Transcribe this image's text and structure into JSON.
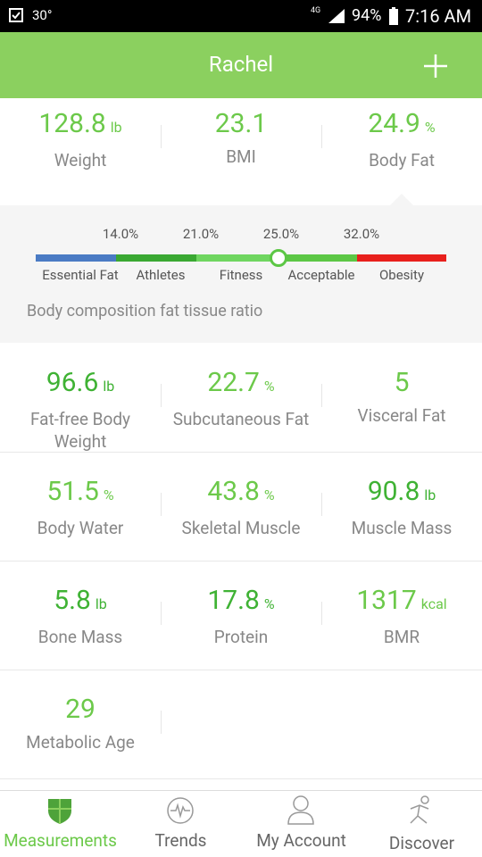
{
  "status_bar": {
    "temperature": "30°",
    "network": "4G",
    "battery": "94%",
    "time": "7:16 AM"
  },
  "header": {
    "title": "Rachel"
  },
  "summary": [
    {
      "value": 128.8,
      "unit": "lb",
      "label": "Weight"
    },
    {
      "value": 23.1,
      "label": "BMI"
    },
    {
      "value": 24.9,
      "unit": "%",
      "label": "Body Fat"
    }
  ],
  "body_fat_scale": {
    "thresholds": [
      "14.0%",
      "21.0%",
      "25.0%",
      "32.0%"
    ],
    "zones": [
      "Essential Fat",
      "Athletes",
      "Fitness",
      "Acceptable",
      "Obesity"
    ],
    "caption": "Body composition fat tissue ratio"
  },
  "metrics": [
    [
      {
        "value": 96.6,
        "unit": "lb",
        "label": "Fat-free Body Weight"
      },
      {
        "value": 22.7,
        "unit": "%",
        "label": "Subcutaneous Fat"
      },
      {
        "value": 5,
        "label": "Visceral Fat"
      }
    ],
    [
      {
        "value": 51.5,
        "unit": "%",
        "label": "Body Water"
      },
      {
        "value": 43.8,
        "unit": "%",
        "label": "Skeletal Muscle"
      },
      {
        "value": 90.8,
        "unit": "lb",
        "label": "Muscle Mass"
      }
    ],
    [
      {
        "value": 5.8,
        "unit": "lb",
        "label": "Bone Mass"
      },
      {
        "value": 17.8,
        "unit": "%",
        "label": "Protein"
      },
      {
        "value": 1317,
        "unit": "kcal",
        "label": "BMR"
      }
    ],
    [
      {
        "value": 29,
        "label": "Metabolic Age"
      }
    ]
  ],
  "tabs": [
    "Measurements",
    "Trends",
    "My Account",
    "Discover"
  ]
}
